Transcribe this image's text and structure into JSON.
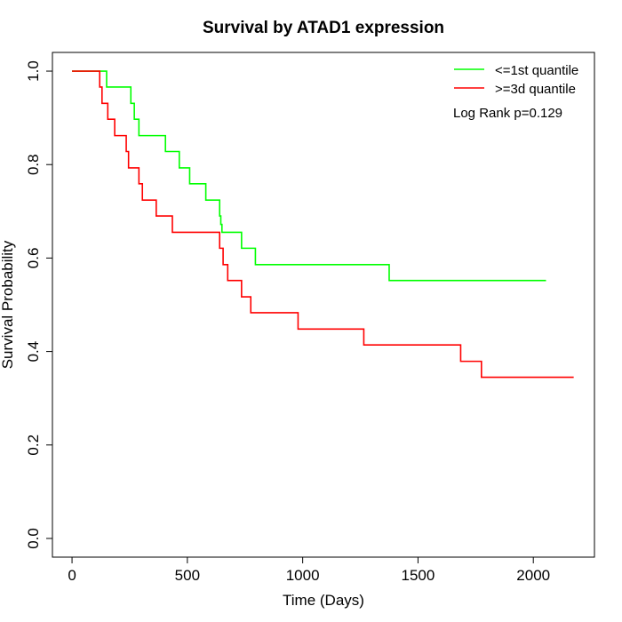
{
  "chart_data": {
    "type": "line",
    "step": true,
    "title": "Survival by ATAD1 expression",
    "xlabel": "Time (Days)",
    "ylabel": "Survival Probability",
    "xlim": [
      -85,
      2265
    ],
    "ylim": [
      -0.04,
      1.04
    ],
    "xticks": [
      0,
      500,
      1000,
      1500,
      2000
    ],
    "yticks": [
      0.0,
      0.2,
      0.4,
      0.6,
      0.8,
      1.0
    ],
    "xtick_labels": [
      "0",
      "500",
      "1000",
      "1500",
      "2000"
    ],
    "ytick_labels": [
      "0.0",
      "0.2",
      "0.4",
      "0.6",
      "0.8",
      "1.0"
    ],
    "grid": false,
    "legend_position": "top-right",
    "annotation": "Log Rank p=0.129",
    "series": [
      {
        "name": "<=1st quantile",
        "color": "#00ff00",
        "x": [
          0,
          150,
          255,
          270,
          290,
          310,
          405,
          465,
          510,
          580,
          640,
          645,
          650,
          735,
          795,
          1375,
          2055
        ],
        "y": [
          1.0,
          0.966,
          0.931,
          0.897,
          0.862,
          0.862,
          0.828,
          0.793,
          0.759,
          0.724,
          0.69,
          0.672,
          0.655,
          0.621,
          0.586,
          0.552,
          0.552
        ]
      },
      {
        "name": ">=3d quantile",
        "color": "#ff0000",
        "x": [
          0,
          120,
          130,
          155,
          185,
          235,
          245,
          290,
          305,
          320,
          365,
          435,
          640,
          655,
          665,
          675,
          735,
          775,
          980,
          1265,
          1685,
          1775,
          2175
        ],
        "y": [
          1.0,
          0.966,
          0.931,
          0.897,
          0.862,
          0.828,
          0.793,
          0.759,
          0.724,
          0.724,
          0.69,
          0.655,
          0.621,
          0.586,
          0.586,
          0.552,
          0.517,
          0.483,
          0.448,
          0.414,
          0.379,
          0.345,
          0.345
        ]
      }
    ]
  }
}
